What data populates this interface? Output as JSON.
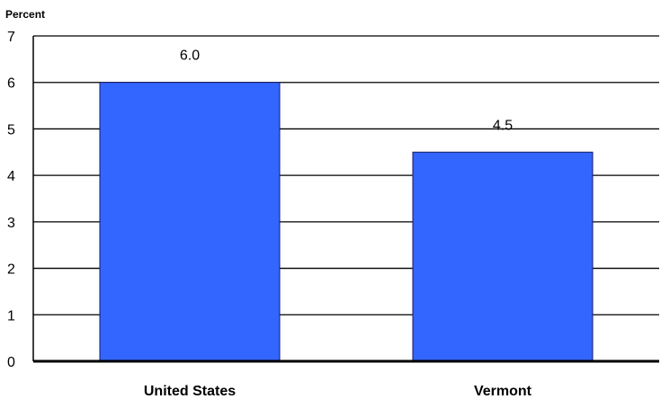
{
  "chart_data": {
    "type": "bar",
    "ylabel": "Percent",
    "categories": [
      "United States",
      "Vermont"
    ],
    "values": [
      6.0,
      4.5
    ],
    "value_labels": [
      "6.0",
      "4.5"
    ],
    "ylim": [
      0,
      7
    ],
    "yticks": [
      "0",
      "1",
      "2",
      "3",
      "4",
      "5",
      "6",
      "7"
    ],
    "grid": true,
    "legend": "none",
    "colors": {
      "bar": "#3366ff",
      "bar_border": "#1a1a66",
      "grid": "#000000"
    }
  }
}
